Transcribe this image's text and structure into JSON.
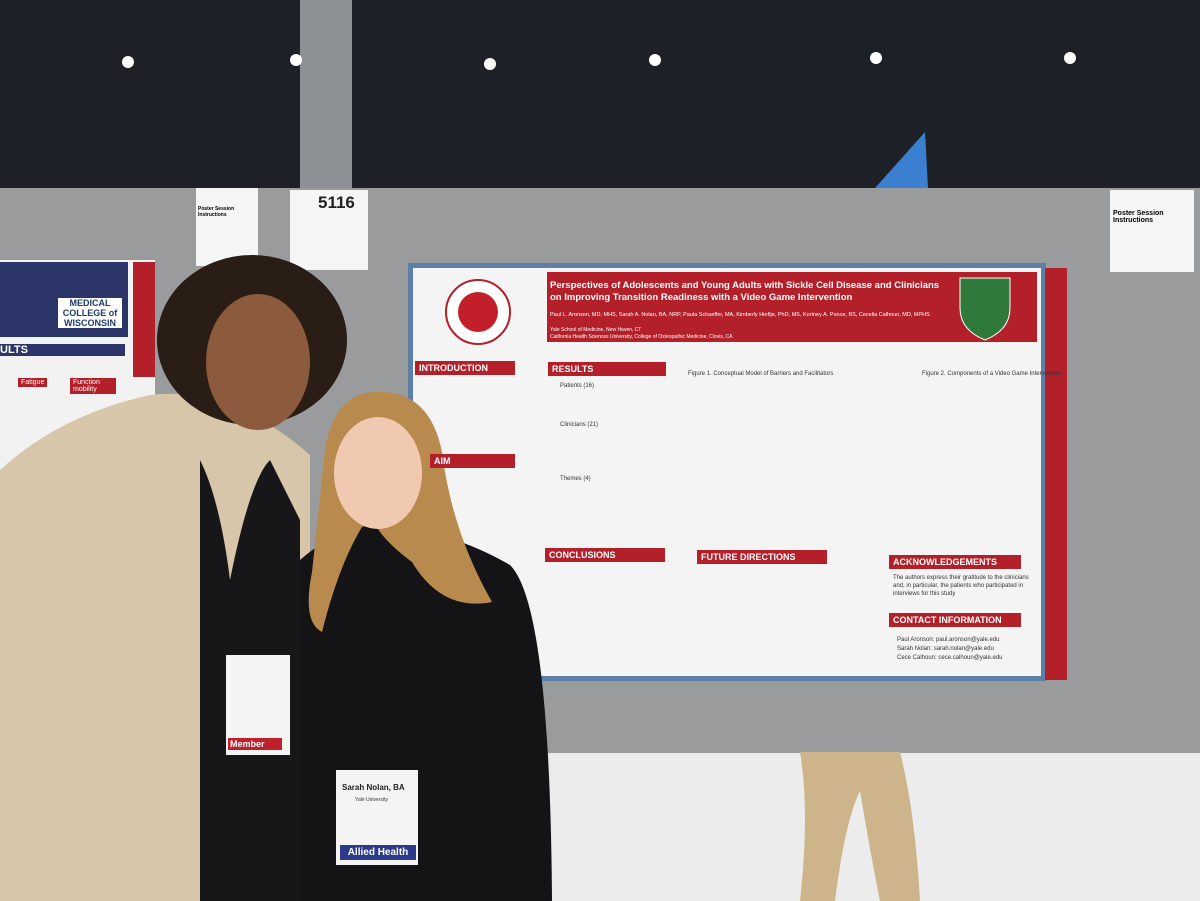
{
  "booth_number": "5116",
  "instructions": [
    "Poster Session Instructions",
    "Poster Session Instructions"
  ],
  "poster": {
    "title": "Perspectives of Adolescents and Young Adults with Sickle Cell Disease and Clinicians on Improving Transition Readiness with a Video Game Intervention",
    "authors": "Paul L. Aronson, MD, MHS, Sarah A. Nolan, BA, NRP, Paula Schaeffer, MA, Kimberly Hieftje, PhD, MS, Kortney A. Ponce, BS, Cecelia Calhoun, MD, MPHS",
    "affiliations": [
      "Yale School of Medicine, New Haven, CT",
      "California Health Sciences University, College of Osteopathic Medicine, Clovis, CA"
    ],
    "sections": {
      "introduction": "INTRODUCTION",
      "aim": "AIM",
      "results": "RESULTS",
      "conclusions": "CONCLUSIONS",
      "future": "FUTURE DIRECTIONS",
      "acknowledgements": "ACKNOWLEDGEMENTS",
      "contact": "CONTACT INFORMATION"
    },
    "results_items": [
      "Patients (16)",
      "Clinicians (21)",
      "Themes (4)"
    ],
    "figure1": "Figure 1. Conceptual Model of Barriers and Facilitators",
    "figure2": "Figure 2. Components of a Video Game Intervention",
    "acknowledgements_text": "The authors express their gratitude to the clinicians and, in particular, the patients who participated in interviews for this study",
    "contacts": [
      "Paul Aronson: paul.aronson@yale.edu",
      "Sarah Nolan: sarah.nolan@yale.edu",
      "Cece Calhoun: cece.calhoun@yale.edu"
    ]
  },
  "left_poster": {
    "logo": "MEDICAL COLLEGE of WISCONSIN",
    "heading": "ULTS",
    "columns": [
      "Fatigue",
      "Function mobility"
    ]
  },
  "badges": {
    "left_type": "Member",
    "right_name": "Sarah Nolan, BA",
    "right_org": "Yale University",
    "right_type": "Allied Health"
  }
}
